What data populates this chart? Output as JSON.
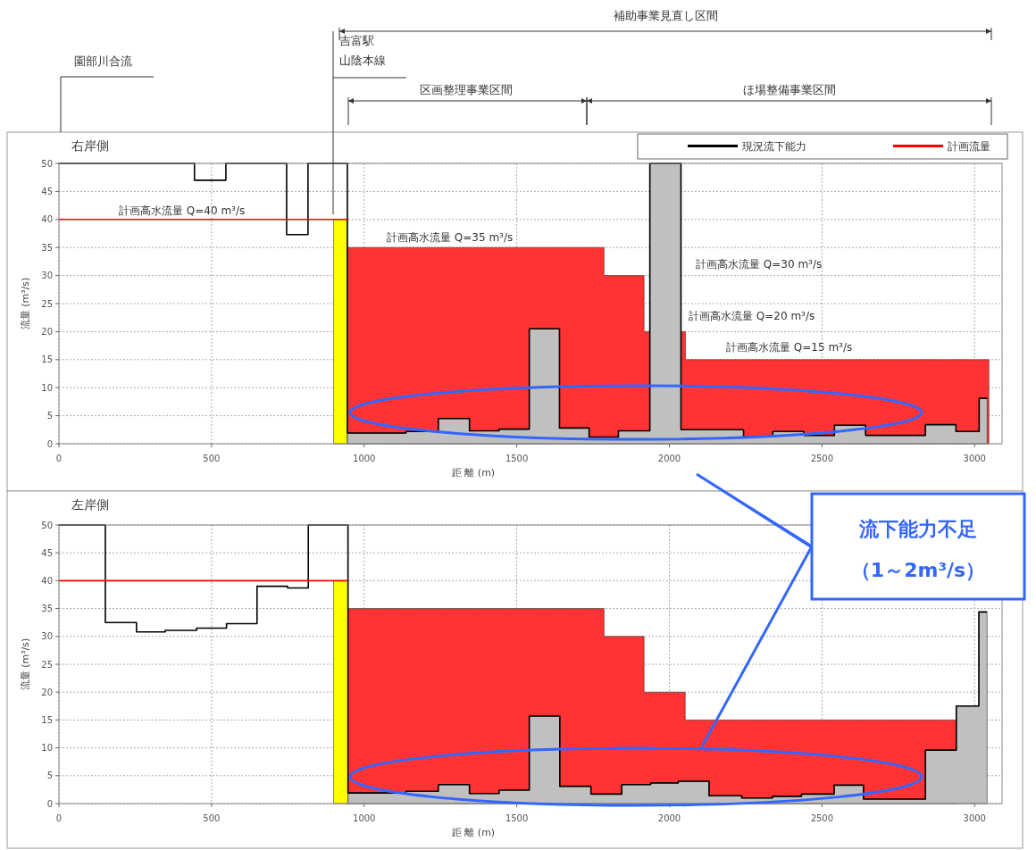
{
  "chart_data": [
    {
      "type": "step",
      "title": "右岸側",
      "xlabel": "距 離 (m)",
      "ylabel": "流量 (m³/s)",
      "xlim": [
        0,
        3090
      ],
      "ylim": [
        0,
        50
      ],
      "xticks": [
        0,
        500,
        1000,
        1500,
        2000,
        2500,
        3000
      ],
      "yticks": [
        0,
        5,
        10,
        15,
        20,
        25,
        30,
        35,
        40,
        45,
        50
      ],
      "grid": true,
      "legend": "top right",
      "series": [
        {
          "type": "area",
          "color": "#ffff00",
          "x": [
            900,
            945
          ],
          "values": [
            40,
            40
          ]
        },
        {
          "type": "area",
          "color": "#ff3333",
          "x": [
            945,
            1786,
            1917,
            2053,
            3047
          ],
          "values": [
            35,
            30,
            20,
            15,
            15
          ]
        },
        {
          "type": "area",
          "color": "#c0c0c0",
          "x": [
            945,
            1137,
            1243,
            1345,
            1442,
            1541,
            1640,
            1737,
            1833,
            1936,
            2038,
            2243,
            2339,
            2441,
            2541,
            2643,
            2839,
            2939,
            3015,
            3041
          ],
          "values": [
            1.9,
            2.2,
            4.5,
            2.3,
            2.6,
            20.5,
            2.8,
            1.2,
            2.3,
            50,
            2.5,
            1.3,
            2.2,
            1.5,
            3.3,
            1.5,
            3.4,
            2.2,
            8.1,
            8.1
          ]
        },
        {
          "name": "現況流下能力",
          "color": "#000000",
          "x": [
            0,
            444,
            547,
            746,
            816,
            945,
            1137,
            1243,
            1345,
            1442,
            1541,
            1640,
            1737,
            1833,
            1936,
            2038,
            2243,
            2339,
            2441,
            2541,
            2643,
            2839,
            2939,
            3015,
            3041
          ],
          "values": [
            50,
            47,
            50,
            37.3,
            50,
            1.9,
            2.2,
            4.5,
            2.3,
            2.6,
            20.5,
            2.8,
            1.2,
            2.3,
            50,
            2.5,
            1.3,
            2.2,
            1.5,
            3.3,
            1.5,
            3.4,
            2.2,
            8.1,
            8.1
          ]
        },
        {
          "name": "計画流量",
          "color": "#ff0000",
          "x": [
            0,
            945
          ],
          "values": [
            40,
            40
          ]
        }
      ],
      "annotations": [
        "園部川合流",
        "吉富駅",
        "山陰本線",
        "補助事業見直し区間",
        "区画整理事業区間",
        "ほ場整備事業区間",
        "計画高水流量 Q=40 m³/s",
        "計画高水流量 Q=35 m³/s",
        "計画高水流量 Q=30 m³/s",
        "計画高水流量 Q=20 m³/s",
        "計画高水流量 Q=15 m³/s"
      ]
    },
    {
      "type": "step",
      "title": "左岸側",
      "xlabel": "距 離 (m)",
      "ylabel": "流量 (m³/s)",
      "xlim": [
        0,
        3090
      ],
      "ylim": [
        0,
        50
      ],
      "xticks": [
        0,
        500,
        1000,
        1500,
        2000,
        2500,
        3000
      ],
      "yticks": [
        0,
        5,
        10,
        15,
        20,
        25,
        30,
        35,
        40,
        45,
        50
      ],
      "grid": true,
      "series": [
        {
          "type": "area",
          "color": "#ffff00",
          "x": [
            900,
            947
          ],
          "values": [
            40,
            40
          ]
        },
        {
          "type": "area",
          "color": "#ff3333",
          "x": [
            947,
            1786,
            1917,
            2052,
            2940
          ],
          "values": [
            35,
            30,
            20,
            15,
            15
          ]
        },
        {
          "type": "area",
          "color": "#c0c0c0",
          "x": [
            947,
            1137,
            1243,
            1345,
            1442,
            1541,
            1641,
            1743,
            1844,
            1939,
            2029,
            2130,
            2237,
            2338,
            2433,
            2540,
            2636,
            2839,
            2940,
            3014,
            3041
          ],
          "values": [
            1.9,
            2.2,
            3.4,
            1.8,
            2.4,
            15.7,
            3.1,
            1.7,
            3.4,
            3.7,
            4.0,
            1.4,
            1.0,
            1.3,
            1.7,
            3.3,
            0.8,
            9.6,
            17.5,
            34.4,
            34.4
          ]
        },
        {
          "color": "#000000",
          "x": [
            0,
            152,
            254,
            348,
            451,
            549,
            649,
            749,
            817,
            947,
            1137,
            1243,
            1345,
            1442,
            1541,
            1641,
            1743,
            1844,
            1939,
            2029,
            2130,
            2237,
            2338,
            2433,
            2540,
            2636,
            2839,
            2940,
            3014,
            3041
          ],
          "values": [
            50,
            32.5,
            30.8,
            31.1,
            31.5,
            32.3,
            39,
            38.7,
            50,
            1.9,
            2.2,
            3.4,
            1.8,
            2.4,
            15.7,
            3.1,
            1.7,
            3.4,
            3.7,
            4.0,
            1.4,
            1.0,
            1.3,
            1.7,
            3.3,
            0.8,
            9.6,
            17.5,
            34.4,
            34.4
          ]
        },
        {
          "color": "#ff0000",
          "x": [
            0,
            947
          ],
          "values": [
            40,
            40
          ]
        }
      ],
      "annotations": [
        "流下能力不足",
        "（1～2m³/s）"
      ]
    }
  ]
}
